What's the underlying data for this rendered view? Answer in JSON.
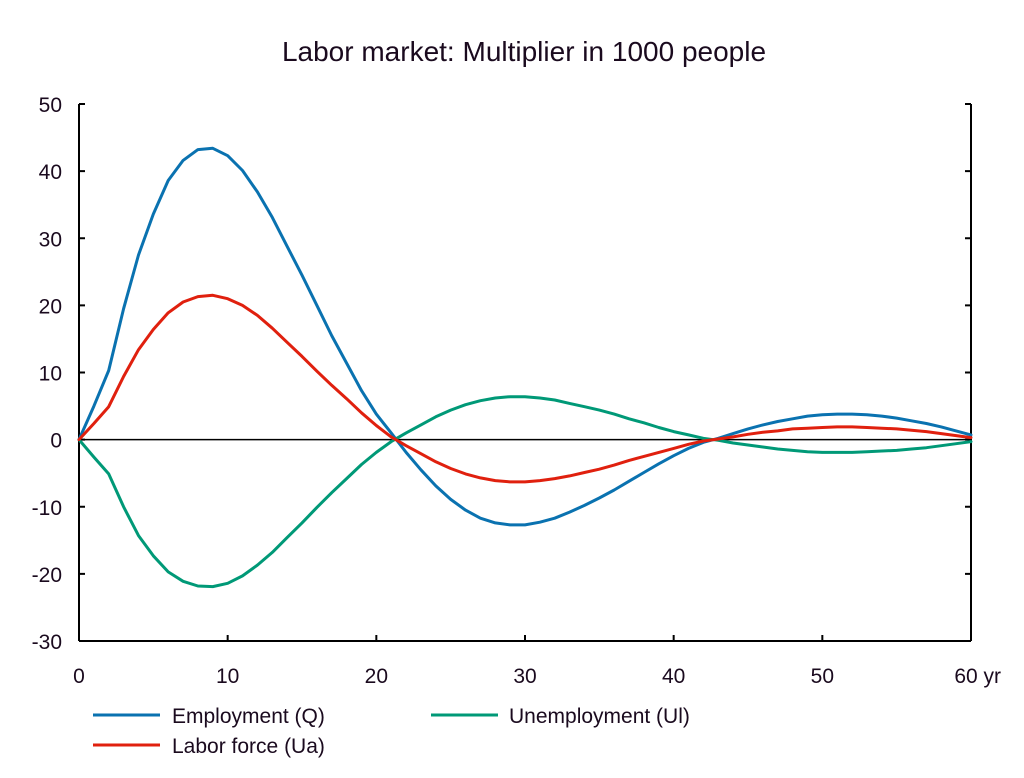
{
  "chart_data": {
    "type": "line",
    "title": "Labor market: Multiplier in 1000 people",
    "xlabel": "",
    "ylabel": "",
    "x_unit_suffix": "yr",
    "xlim": [
      0,
      60
    ],
    "ylim": [
      -30,
      50
    ],
    "xticks": [
      0,
      10,
      20,
      30,
      40,
      50,
      60
    ],
    "xtick_labels": [
      "0",
      "10",
      "20",
      "30",
      "40",
      "50",
      "60 yr"
    ],
    "yticks": [
      50,
      40,
      30,
      20,
      10,
      0,
      -10,
      -20,
      -30
    ],
    "ytick_labels": [
      "50",
      "40",
      "30",
      "20",
      "10",
      "0",
      "-10",
      "-20",
      "-30"
    ],
    "grid": false,
    "zero_line": true,
    "legend_position": "bottom",
    "x": [
      0,
      1,
      2,
      3,
      4,
      5,
      6,
      7,
      8,
      9,
      10,
      11,
      12,
      13,
      14,
      15,
      16,
      17,
      18,
      19,
      20,
      21,
      22,
      23,
      24,
      25,
      26,
      27,
      28,
      29,
      30,
      31,
      32,
      33,
      34,
      35,
      36,
      37,
      38,
      39,
      40,
      41,
      42,
      43,
      44,
      45,
      46,
      47,
      48,
      49,
      50,
      51,
      52,
      53,
      54,
      55,
      56,
      57,
      58,
      59,
      60
    ],
    "series": [
      {
        "name": "Employment (Q)",
        "color": "#0a72b0",
        "values": [
          0,
          5.0,
          10.3,
          19.5,
          27.5,
          33.6,
          38.6,
          41.6,
          43.2,
          43.4,
          42.3,
          40.1,
          36.9,
          33.1,
          28.8,
          24.5,
          20.0,
          15.5,
          11.4,
          7.3,
          3.8,
          1.0,
          -1.9,
          -4.5,
          -6.9,
          -8.9,
          -10.5,
          -11.7,
          -12.4,
          -12.7,
          -12.7,
          -12.3,
          -11.7,
          -10.8,
          -9.8,
          -8.7,
          -7.5,
          -6.2,
          -4.9,
          -3.6,
          -2.4,
          -1.3,
          -0.4,
          0.2,
          0.9,
          1.6,
          2.2,
          2.7,
          3.1,
          3.5,
          3.7,
          3.8,
          3.8,
          3.7,
          3.5,
          3.2,
          2.8,
          2.4,
          1.9,
          1.3,
          0.7
        ]
      },
      {
        "name": "Unemployment (Ul)",
        "color": "#009977",
        "values": [
          0,
          -2.6,
          -5.1,
          -10.0,
          -14.3,
          -17.3,
          -19.7,
          -21.1,
          -21.8,
          -21.9,
          -21.4,
          -20.3,
          -18.7,
          -16.8,
          -14.6,
          -12.4,
          -10.1,
          -7.9,
          -5.8,
          -3.7,
          -1.9,
          -0.3,
          1.0,
          2.2,
          3.4,
          4.4,
          5.2,
          5.8,
          6.2,
          6.4,
          6.4,
          6.2,
          5.9,
          5.4,
          4.9,
          4.4,
          3.8,
          3.1,
          2.5,
          1.8,
          1.2,
          0.7,
          0.2,
          -0.1,
          -0.5,
          -0.8,
          -1.1,
          -1.4,
          -1.6,
          -1.8,
          -1.9,
          -1.9,
          -1.9,
          -1.8,
          -1.7,
          -1.6,
          -1.4,
          -1.2,
          -0.9,
          -0.6,
          -0.3
        ]
      },
      {
        "name": "Labor force (Ua)",
        "color": "#e0200e",
        "values": [
          0,
          2.4,
          4.9,
          9.4,
          13.4,
          16.4,
          18.9,
          20.5,
          21.3,
          21.5,
          21.0,
          20.0,
          18.5,
          16.6,
          14.5,
          12.4,
          10.2,
          8.1,
          6.1,
          4.0,
          2.1,
          0.4,
          -0.9,
          -2.1,
          -3.3,
          -4.3,
          -5.1,
          -5.7,
          -6.1,
          -6.3,
          -6.3,
          -6.1,
          -5.8,
          -5.4,
          -4.9,
          -4.4,
          -3.8,
          -3.1,
          -2.5,
          -1.9,
          -1.3,
          -0.7,
          -0.2,
          0.1,
          0.4,
          0.8,
          1.1,
          1.3,
          1.6,
          1.7,
          1.8,
          1.9,
          1.9,
          1.8,
          1.7,
          1.6,
          1.4,
          1.2,
          0.9,
          0.6,
          0.3
        ]
      }
    ]
  },
  "legend": {
    "items": [
      {
        "label": "Employment (Q)",
        "color": "#0a72b0"
      },
      {
        "label": "Unemployment (Ul)",
        "color": "#009977"
      },
      {
        "label": "Labor force (Ua)",
        "color": "#e0200e"
      }
    ]
  }
}
